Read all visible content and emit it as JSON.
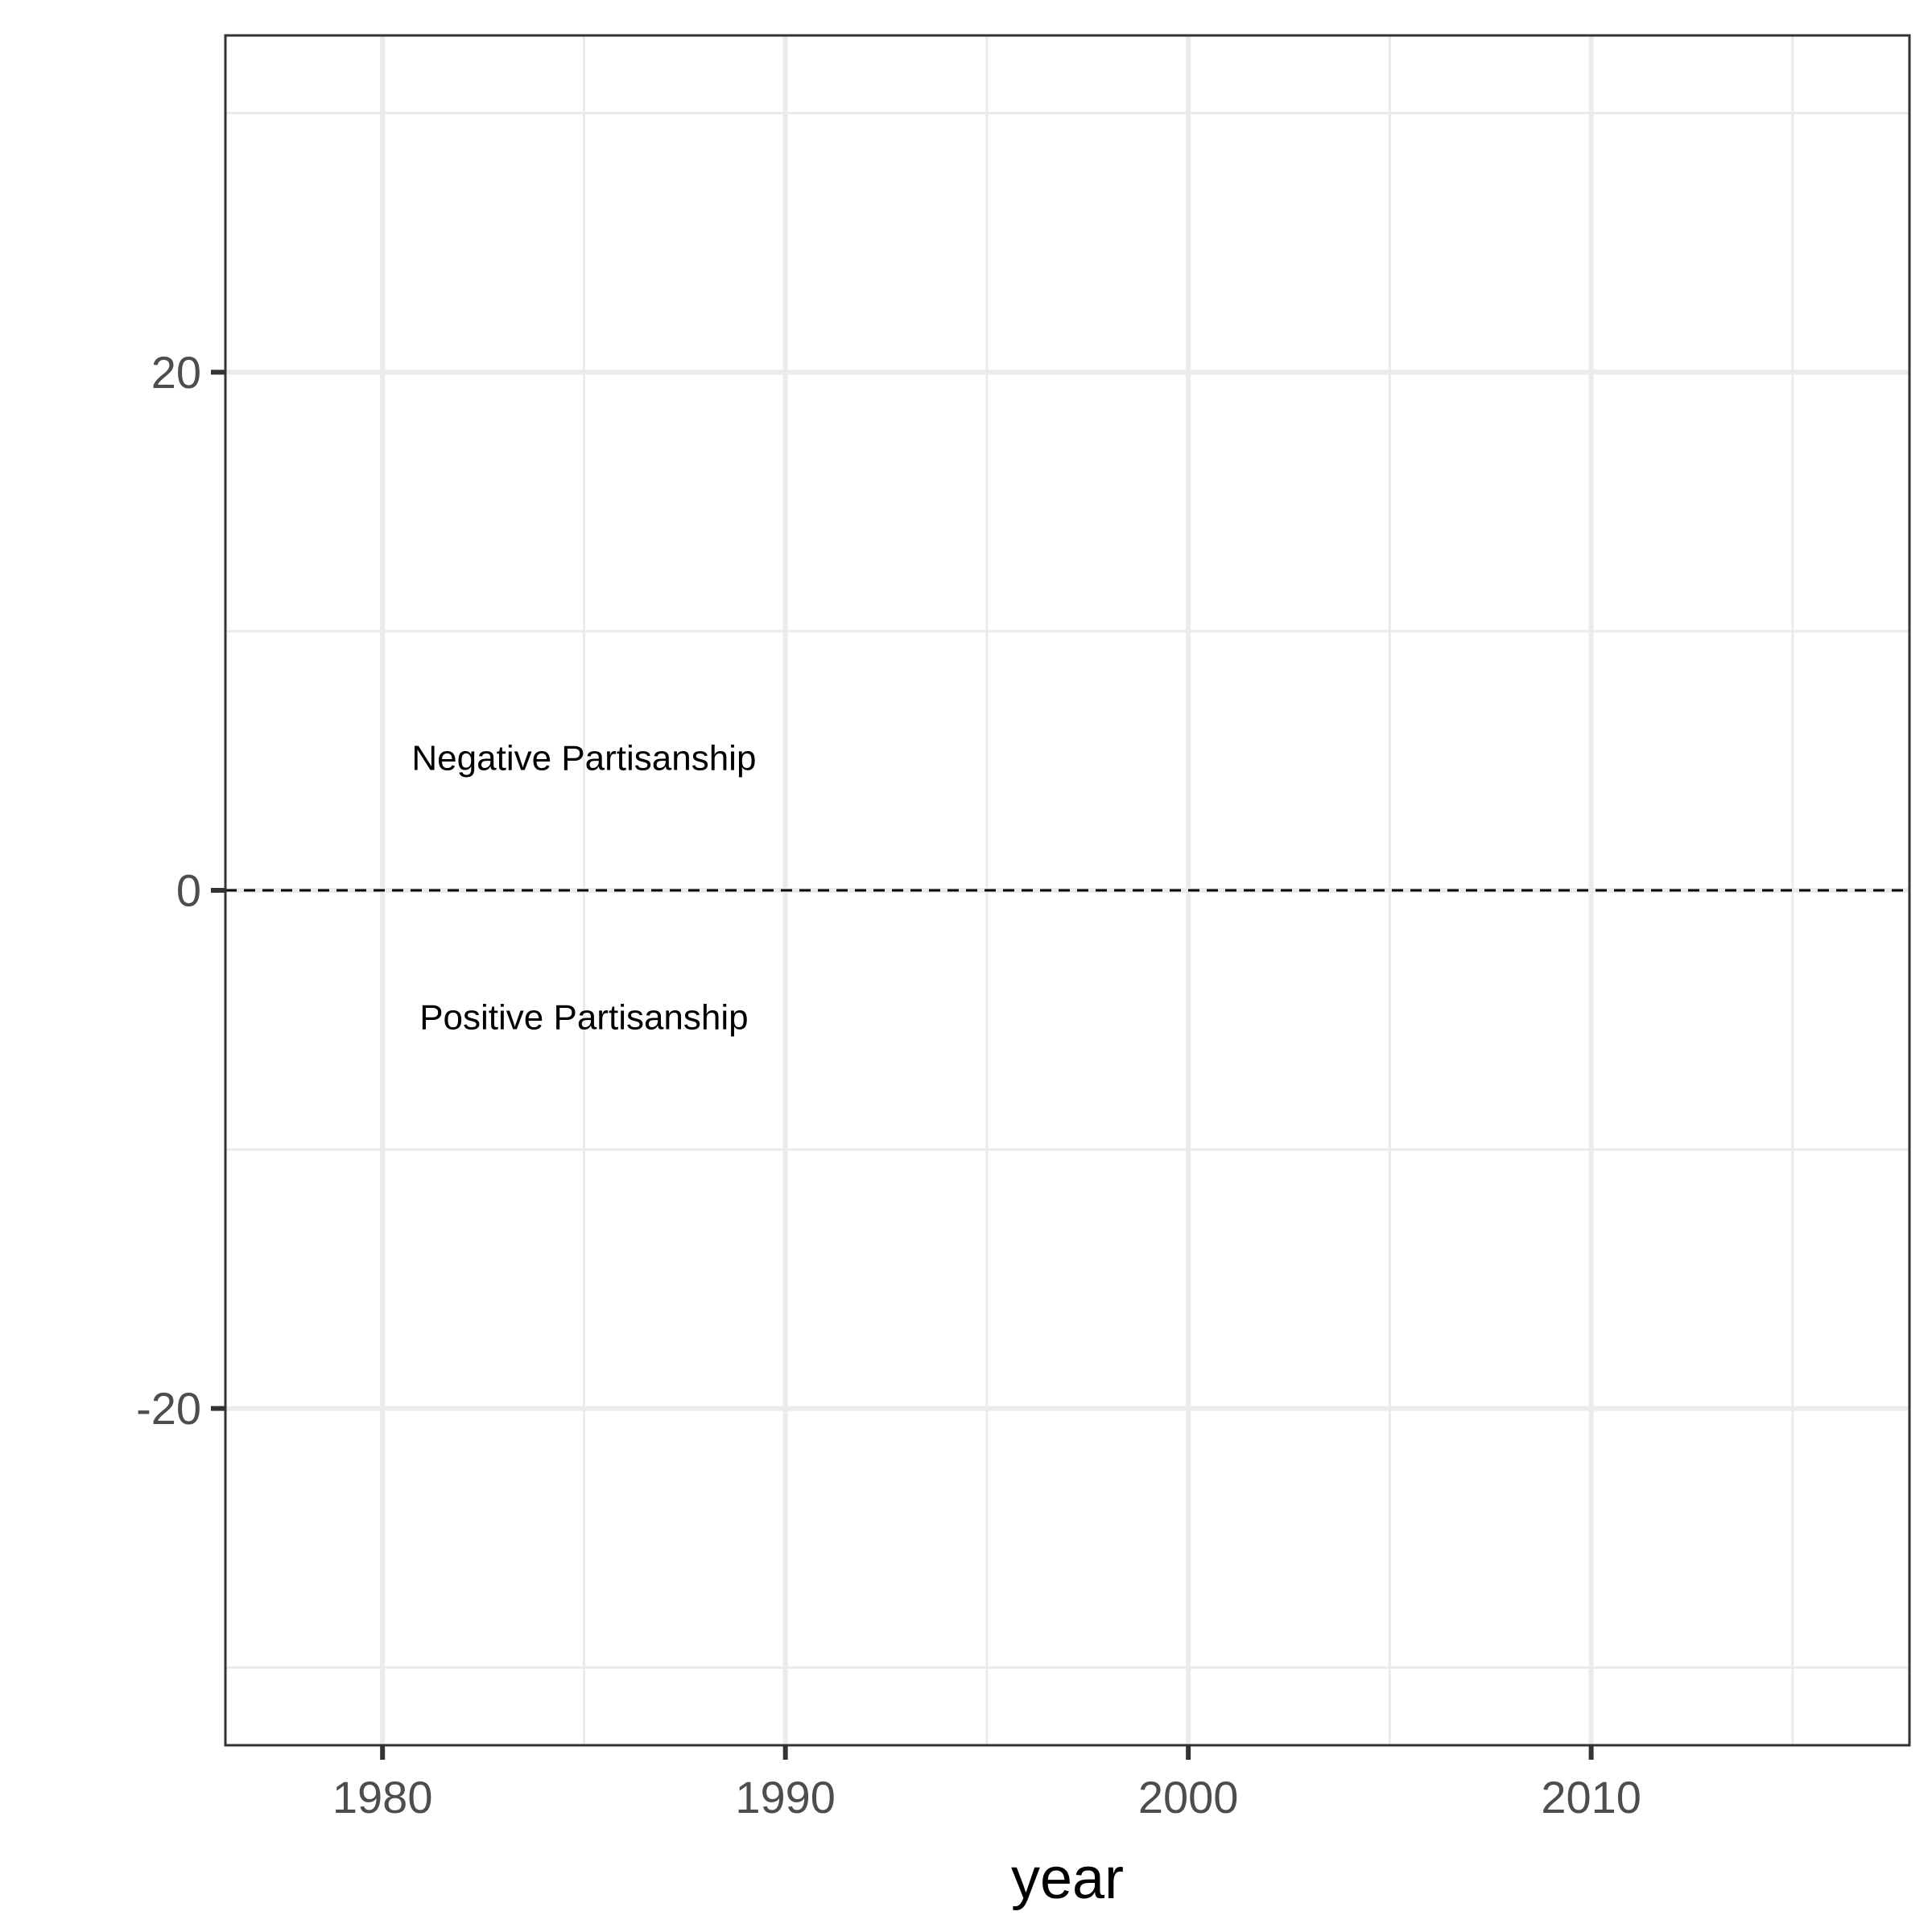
{
  "chart_data": {
    "type": "line",
    "title": "",
    "xlabel": "year",
    "ylabel": "",
    "xlim": [
      1976.1,
      2017.9
    ],
    "ylim": [
      -33.0,
      33.0
    ],
    "x_ticks": [
      1980,
      1990,
      2000,
      2010
    ],
    "x_minor": [
      1985,
      1995,
      2005,
      2015
    ],
    "y_ticks": [
      -20,
      0,
      20
    ],
    "y_tick_labels": [
      "-20",
      "0",
      "20"
    ],
    "y_minor": [
      -30,
      -10,
      10,
      30
    ],
    "grid": true,
    "series": [],
    "reference_line": {
      "y": 0,
      "style": "dashed",
      "color": "#000000"
    },
    "annotations": [
      {
        "text": "Negative Partisanship",
        "x": 1985,
        "y": 5
      },
      {
        "text": "Positive Partisanship",
        "x": 1985,
        "y": -5
      }
    ],
    "colors": {
      "grid": "#ebebeb",
      "border": "#333333",
      "tick_label": "#4d4d4d"
    }
  }
}
